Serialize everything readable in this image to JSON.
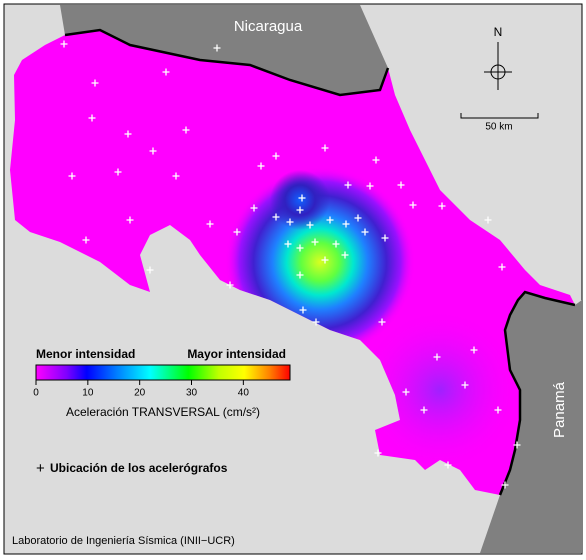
{
  "map": {
    "labels": {
      "north": "Nicaragua",
      "south_east": "Panamá"
    },
    "compass": "N",
    "scale_bar": "50 km",
    "colorbar": {
      "low_label": "Menor intensidad",
      "high_label": "Mayor intensidad",
      "lim": [
        0,
        49
      ],
      "ticks": [
        0,
        10,
        20,
        30,
        40
      ],
      "label": "Aceleración TRANSVERSAL (cm/s²)"
    },
    "legend": "Ubicación de los acelerógrafos",
    "credit": "Laboratorio de Ingeniería Sísmica (INII−UCR)"
  }
}
